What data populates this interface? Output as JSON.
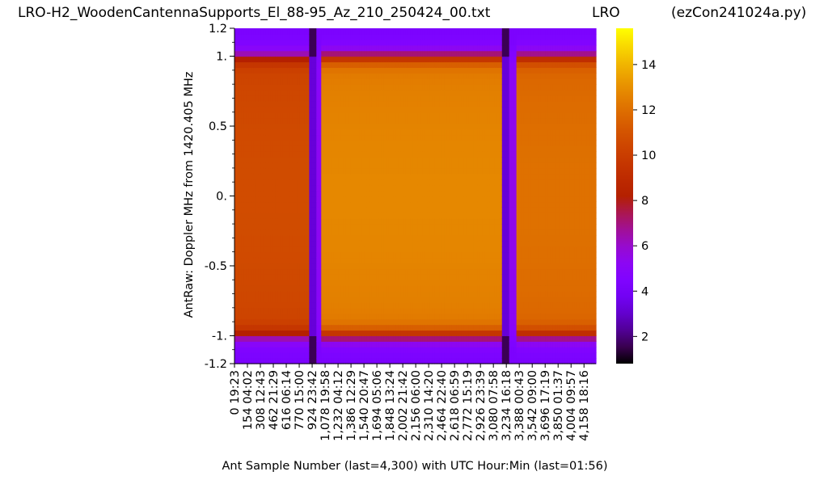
{
  "header": {
    "title_file": "LRO-H2_WoodenCantennaSupports_El_88-95_Az_210_250424_00.txt",
    "title_site": "LRO",
    "title_program": "(ezCon241024a.py)"
  },
  "chart_data": {
    "type": "heatmap",
    "xlabel": "Ant Sample Number (last=4,300) with UTC Hour:Min (last=01:56)",
    "ylabel": "AntRaw:  Doppler MHz from 1420.405 MHz",
    "ylim": [
      -1.2,
      1.2
    ],
    "xlim": [
      0,
      4300
    ],
    "y_ticks": [
      {
        "value": 1.2,
        "label": "1.2"
      },
      {
        "value": 1.0,
        "label": "1."
      },
      {
        "value": 0.5,
        "label": "0.5"
      },
      {
        "value": 0.0,
        "label": "0."
      },
      {
        "value": -0.5,
        "label": "-0.5"
      },
      {
        "value": -1.0,
        "label": "-1."
      },
      {
        "value": -1.2,
        "label": "-1.2"
      }
    ],
    "x_ticks": [
      {
        "value": 0,
        "label": "0 19:23"
      },
      {
        "value": 154,
        "label": "154 04:02"
      },
      {
        "value": 308,
        "label": "308 12:43"
      },
      {
        "value": 462,
        "label": "462 21:29"
      },
      {
        "value": 616,
        "label": "616 06:14"
      },
      {
        "value": 770,
        "label": "770 15:00"
      },
      {
        "value": 924,
        "label": "924 23:42"
      },
      {
        "value": 1078,
        "label": "1,078 19:58"
      },
      {
        "value": 1232,
        "label": "1,232 04:12"
      },
      {
        "value": 1386,
        "label": "1,386 12:29"
      },
      {
        "value": 1540,
        "label": "1,540 20:47"
      },
      {
        "value": 1694,
        "label": "1,694 05:06"
      },
      {
        "value": 1848,
        "label": "1,848 13:24"
      },
      {
        "value": 2002,
        "label": "2,002 21:42"
      },
      {
        "value": 2156,
        "label": "2,156 06:00"
      },
      {
        "value": 2310,
        "label": "2,310 14:20"
      },
      {
        "value": 2464,
        "label": "2,464 22:40"
      },
      {
        "value": 2618,
        "label": "2,618 06:59"
      },
      {
        "value": 2772,
        "label": "2,772 15:19"
      },
      {
        "value": 2926,
        "label": "2,926 23:39"
      },
      {
        "value": 3080,
        "label": "3,080 07:58"
      },
      {
        "value": 3234,
        "label": "3,234 16:18"
      },
      {
        "value": 3388,
        "label": "3,388 00:43"
      },
      {
        "value": 3542,
        "label": "3,542 09:00"
      },
      {
        "value": 3696,
        "label": "3,696 17:19"
      },
      {
        "value": 3850,
        "label": "3,850 01:37"
      },
      {
        "value": 4004,
        "label": "4,004 09:57"
      },
      {
        "value": 4158,
        "label": "4,158 18:16"
      }
    ],
    "colorbar": {
      "colormap": "gnuplot",
      "range": [
        0.8,
        15.6
      ],
      "ticks": [
        {
          "value": 2,
          "label": "2"
        },
        {
          "value": 4,
          "label": "4"
        },
        {
          "value": 6,
          "label": "6"
        },
        {
          "value": 8,
          "label": "8"
        },
        {
          "value": 10,
          "label": "10"
        },
        {
          "value": 12,
          "label": "12"
        },
        {
          "value": 14,
          "label": "14"
        }
      ]
    },
    "segments": [
      {
        "x0": 0,
        "x1": 950,
        "level": 10.4
      },
      {
        "x0": 950,
        "x1": 1040,
        "level": 5.0
      },
      {
        "x0": 1040,
        "x1": 3200,
        "level": 12.5
      },
      {
        "x0": 3200,
        "x1": 3360,
        "level": 5.2
      },
      {
        "x0": 3360,
        "x1": 4300,
        "level": 11.8
      }
    ],
    "band_edges": [
      -1.0,
      1.0
    ],
    "edge_level": 4.3,
    "dark_columns": [
      920,
      3230
    ]
  }
}
